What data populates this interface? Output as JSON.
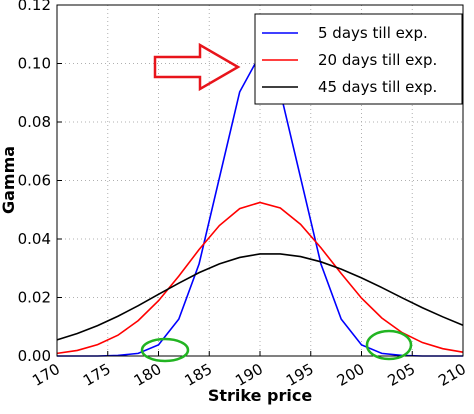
{
  "chart_data": {
    "type": "line",
    "x_label": "Strike price",
    "y_label": "Gamma",
    "x": [
      170,
      172,
      174,
      176,
      178,
      180,
      182,
      184,
      186,
      188,
      190,
      192,
      194,
      196,
      198,
      200,
      202,
      204,
      206,
      208,
      210
    ],
    "series": [
      {
        "name": "5 days till exp.",
        "color": "#0000ff",
        "values": [
          0.0,
          0.0,
          0.0,
          0.0002,
          0.0009,
          0.0038,
          0.0126,
          0.0315,
          0.0609,
          0.0903,
          0.103,
          0.0903,
          0.0609,
          0.0315,
          0.0126,
          0.0038,
          0.0009,
          0.0002,
          0.0,
          0.0,
          0.0
        ]
      },
      {
        "name": "20 days till exp.",
        "color": "#ff0000",
        "values": [
          0.0009,
          0.0019,
          0.0039,
          0.0071,
          0.0121,
          0.0189,
          0.0273,
          0.0364,
          0.0446,
          0.0504,
          0.0525,
          0.0506,
          0.045,
          0.037,
          0.0282,
          0.0198,
          0.013,
          0.008,
          0.0046,
          0.0025,
          0.0013
        ]
      },
      {
        "name": "45 days till exp.",
        "color": "#000000",
        "values": [
          0.0055,
          0.0077,
          0.0104,
          0.0136,
          0.0172,
          0.0211,
          0.0249,
          0.0285,
          0.0315,
          0.0337,
          0.0349,
          0.0349,
          0.034,
          0.0322,
          0.0297,
          0.0267,
          0.0234,
          0.0199,
          0.0165,
          0.0134,
          0.0105
        ]
      }
    ],
    "xlim": [
      170,
      210
    ],
    "xticks": [
      170,
      175,
      180,
      185,
      190,
      195,
      200,
      205,
      210
    ],
    "ylim": [
      0,
      0.12
    ],
    "yticks": [
      {
        "value": 0,
        "label": "0.00"
      },
      {
        "value": 0.02,
        "label": "0.02"
      },
      {
        "value": 0.04,
        "label": "0.04"
      },
      {
        "value": 0.06,
        "label": "0.06"
      },
      {
        "value": 0.08,
        "label": "0.08"
      },
      {
        "value": 0.1,
        "label": "0.10"
      },
      {
        "value": 0.12,
        "label": "0.12"
      }
    ],
    "grid": true,
    "legend": "upper right"
  }
}
